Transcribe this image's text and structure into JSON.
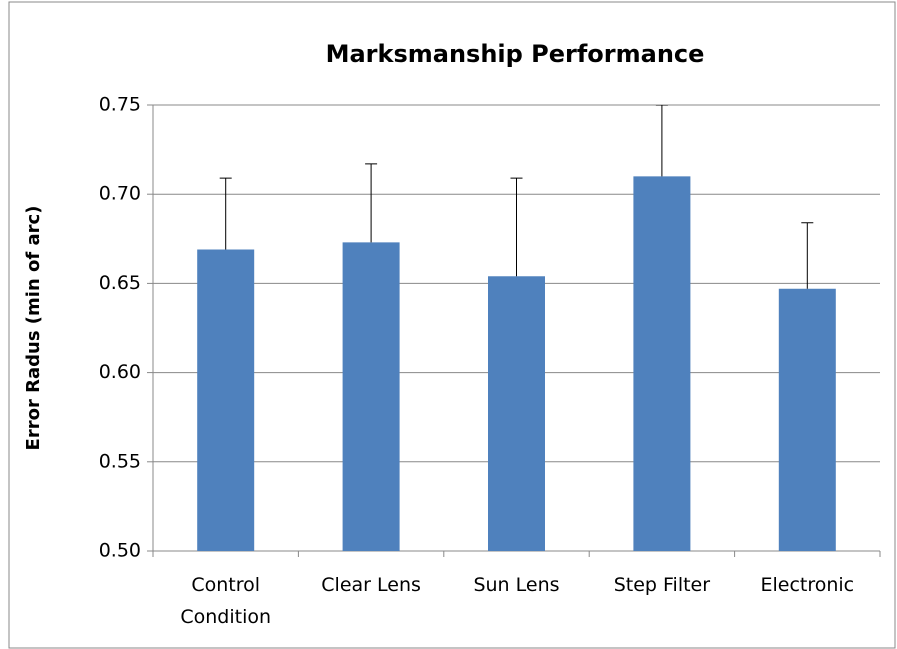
{
  "chart_data": {
    "type": "bar",
    "title": "Marksmanship Performance",
    "y_label": "Error Radus (min of arc)",
    "categories": [
      "Control Condition",
      "Clear Lens",
      "Sun Lens",
      "Step Filter",
      "Electronic"
    ],
    "values": [
      0.669,
      0.673,
      0.654,
      0.71,
      0.647
    ],
    "errors": [
      0.04,
      0.044,
      0.055,
      0.04,
      0.037
    ],
    "color": "#4f81bd",
    "ylim": [
      0.5,
      0.75
    ],
    "yticks": [
      {
        "value": 0.5,
        "label": "0.50"
      },
      0.55,
      {
        "value": 0.6,
        "label": "0.60"
      },
      0.65,
      {
        "value": 0.7,
        "label": "0.70"
      },
      0.75
    ],
    "grid": true
  }
}
